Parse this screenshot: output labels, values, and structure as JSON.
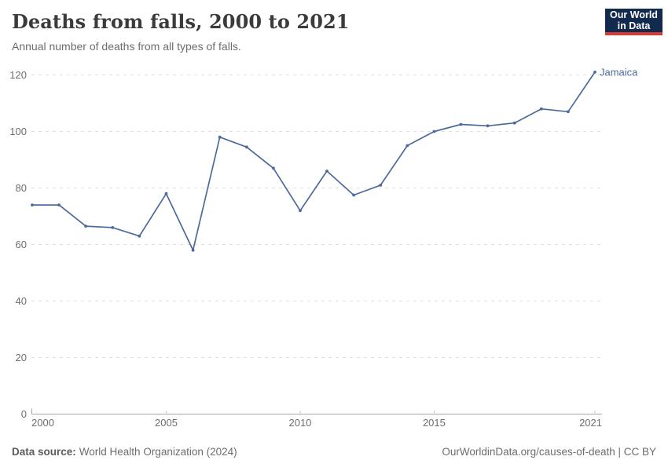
{
  "header": {
    "title": "Deaths from falls, 2000 to 2021",
    "subtitle": "Annual number of deaths from all types of falls.",
    "logo": {
      "line1": "Our World",
      "line2": "in Data"
    }
  },
  "chart_data": {
    "type": "line",
    "title": "Deaths from falls, 2000 to 2021",
    "xlabel": "",
    "ylabel": "",
    "xlim": [
      2000,
      2021
    ],
    "ylim": [
      0,
      120
    ],
    "x_ticks": [
      2000,
      2005,
      2010,
      2015,
      2021
    ],
    "y_ticks": [
      0,
      20,
      40,
      60,
      80,
      100,
      120
    ],
    "grid": "horizontal-dashed",
    "legend_position": "end-of-line-label",
    "x": [
      2000,
      2001,
      2002,
      2003,
      2004,
      2005,
      2006,
      2007,
      2008,
      2009,
      2010,
      2011,
      2012,
      2013,
      2014,
      2015,
      2016,
      2017,
      2018,
      2019,
      2020,
      2021
    ],
    "series": [
      {
        "name": "Jamaica",
        "color": "#4c6a9c",
        "values": [
          74,
          74,
          66.5,
          66,
          63,
          78,
          58,
          98,
          94.5,
          87,
          72,
          86,
          77.5,
          81,
          95,
          100,
          102.5,
          102,
          103,
          108,
          107,
          121
        ]
      }
    ]
  },
  "footer": {
    "datasource_label": "Data source:",
    "datasource_value": "World Health Organization (2024)",
    "link": "OurWorldinData.org/causes-of-death | CC BY"
  },
  "colors": {
    "line": "#4c6a9c",
    "grid": "#e0e0e0",
    "axis": "#a7a7a7",
    "tick": "#c9c9c9",
    "tick_label": "#6e6e6e",
    "logo_bg": "#122a4e",
    "logo_red": "#d93a34"
  }
}
